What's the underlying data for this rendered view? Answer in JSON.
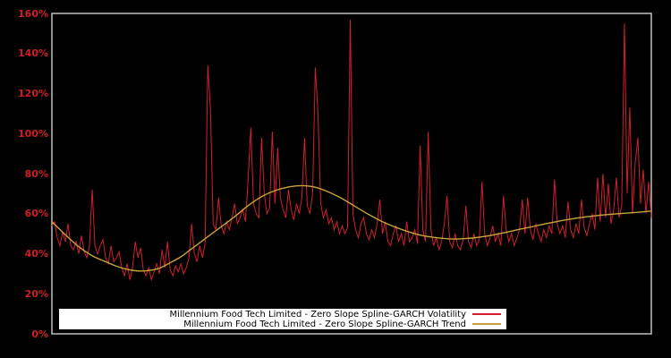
{
  "window": {
    "background": "#000000"
  },
  "axis": {
    "frame_color": "#bfbfbf",
    "label_color": "#cc1f26",
    "legend_background": "#ffffff",
    "legend_text_color": "#000000"
  },
  "chart_data": {
    "type": "line",
    "title": "",
    "xlabel": "",
    "ylabel": "",
    "grid": false,
    "legend_position": "bottom-center",
    "ylim": [
      0,
      160
    ],
    "y_tick_values": [
      0,
      20,
      40,
      60,
      80,
      100,
      120,
      140,
      160
    ],
    "y_tick_labels": [
      "0%",
      "20%",
      "40%",
      "60%",
      "80%",
      "100%",
      "120%",
      "140%",
      "160%"
    ],
    "x_tick_labels": [],
    "unit": "%",
    "series": [
      {
        "name": "Millennium Food Tech Limited - Zero Slope Spline-GARCH Volatility",
        "color": "#d21f2b",
        "style": "noisy-line",
        "values": [
          54,
          56,
          48,
          44,
          51,
          46,
          55,
          44,
          42,
          46,
          40,
          49,
          41,
          38,
          44,
          72,
          44,
          40,
          44,
          47,
          38,
          35,
          44,
          36,
          38,
          41,
          33,
          29,
          35,
          27,
          33,
          46,
          38,
          43,
          32,
          29,
          33,
          27,
          31,
          35,
          30,
          42,
          33,
          46,
          32,
          29,
          34,
          31,
          35,
          30,
          33,
          38,
          55,
          40,
          36,
          44,
          38,
          45,
          134,
          112,
          55,
          52,
          68,
          54,
          50,
          56,
          52,
          58,
          65,
          55,
          58,
          62,
          56,
          77,
          103,
          65,
          60,
          58,
          98,
          70,
          60,
          63,
          101,
          65,
          93,
          68,
          62,
          58,
          72,
          62,
          57,
          65,
          60,
          68,
          98,
          64,
          60,
          70,
          133,
          110,
          65,
          58,
          62,
          55,
          58,
          52,
          56,
          50,
          54,
          50,
          53,
          157,
          60,
          52,
          48,
          55,
          58,
          50,
          47,
          52,
          48,
          55,
          67,
          50,
          56,
          46,
          44,
          50,
          54,
          46,
          50,
          44,
          56,
          46,
          48,
          52,
          45,
          94,
          52,
          46,
          101,
          52,
          44,
          48,
          42,
          46,
          55,
          69,
          46,
          43,
          50,
          44,
          42,
          47,
          64,
          46,
          43,
          50,
          44,
          47,
          76,
          50,
          44,
          48,
          54,
          46,
          50,
          44,
          69,
          52,
          46,
          50,
          44,
          48,
          52,
          67,
          50,
          68,
          52,
          47,
          55,
          50,
          46,
          52,
          48,
          54,
          50,
          77,
          55,
          50,
          54,
          48,
          66,
          52,
          48,
          55,
          50,
          67,
          53,
          49,
          55,
          60,
          52,
          78,
          56,
          80,
          58,
          75,
          55,
          62,
          78,
          58,
          64,
          155,
          70,
          113,
          60,
          85,
          98,
          65,
          82,
          60,
          76,
          58
        ]
      },
      {
        "name": "Millennium Food Tech Limited - Zero Slope Spline-GARCH Trend",
        "color": "#c9a43c",
        "style": "smooth-spline",
        "keypoints": [
          [
            0,
            56
          ],
          [
            5,
            49.5
          ],
          [
            10,
            43.5
          ],
          [
            15,
            39
          ],
          [
            20,
            36
          ],
          [
            24,
            33.8
          ],
          [
            28,
            32.2
          ],
          [
            32,
            31.4
          ],
          [
            36,
            31.6
          ],
          [
            40,
            32.8
          ],
          [
            44,
            35.5
          ],
          [
            48,
            38.5
          ],
          [
            52,
            42.5
          ],
          [
            57,
            47.5
          ],
          [
            62,
            52.5
          ],
          [
            68,
            58.5
          ],
          [
            73,
            64
          ],
          [
            78,
            68.5
          ],
          [
            83,
            71.5
          ],
          [
            88,
            73.3
          ],
          [
            93,
            74
          ],
          [
            98,
            73.2
          ],
          [
            103,
            70.8
          ],
          [
            108,
            67.5
          ],
          [
            113,
            63.5
          ],
          [
            118,
            59.5
          ],
          [
            123,
            56
          ],
          [
            128,
            53.2
          ],
          [
            133,
            50.8
          ],
          [
            138,
            49
          ],
          [
            143,
            48
          ],
          [
            148,
            47.4
          ],
          [
            153,
            47.5
          ],
          [
            158,
            48.1
          ],
          [
            163,
            49.1
          ],
          [
            168,
            50.4
          ],
          [
            173,
            51.9
          ],
          [
            178,
            53.3
          ],
          [
            183,
            54.8
          ],
          [
            188,
            56.1
          ],
          [
            193,
            57.3
          ],
          [
            198,
            58.3
          ],
          [
            203,
            59.1
          ],
          [
            208,
            59.7
          ],
          [
            213,
            60.2
          ],
          [
            218,
            60.7
          ],
          [
            223,
            61.3
          ]
        ]
      }
    ]
  }
}
